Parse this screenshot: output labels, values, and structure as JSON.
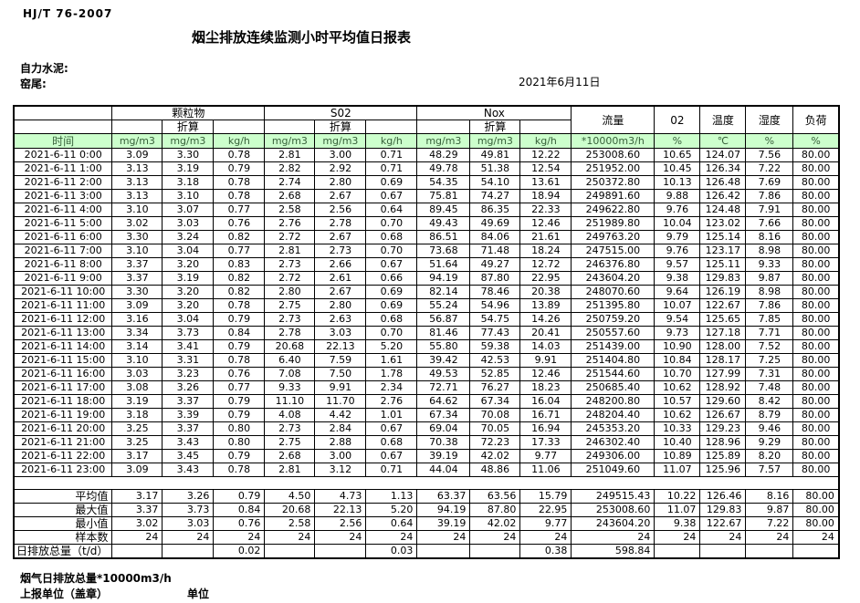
{
  "meta": {
    "standard": "HJ/T  76-2007",
    "title": "烟尘排放连续监测小时平均值日报表",
    "company": "自力水泥:",
    "location": "窑尾:",
    "date": "2021年6月11日"
  },
  "table": {
    "time_header": "时间",
    "groups": [
      {
        "label": "颗粒物"
      },
      {
        "label": "S02"
      },
      {
        "label": "Nox"
      }
    ],
    "converted_label": "折算",
    "flow_header": "流量",
    "o2_header": "02",
    "temp_header": "温度",
    "humidity_header": "湿度",
    "load_header": "负荷",
    "units": [
      "mg/m3",
      "mg/m3",
      "kg/h",
      "mg/m3",
      "mg/m3",
      "kg/h",
      "mg/m3",
      "mg/m3",
      "kg/h",
      "*10000m3/h",
      "%",
      "℃",
      "%",
      "%"
    ],
    "rows": [
      {
        "time": "2021-6-11 0:00",
        "values": [
          "3.09",
          "3.30",
          "0.78",
          "2.81",
          "3.00",
          "0.71",
          "48.29",
          "49.81",
          "12.22",
          "253008.60",
          "10.65",
          "124.07",
          "7.56",
          "80.00"
        ]
      },
      {
        "time": "2021-6-11 1:00",
        "values": [
          "3.13",
          "3.19",
          "0.79",
          "2.82",
          "2.92",
          "0.71",
          "49.78",
          "51.38",
          "12.54",
          "251952.00",
          "10.45",
          "126.34",
          "7.22",
          "80.00"
        ]
      },
      {
        "time": "2021-6-11 2:00",
        "values": [
          "3.13",
          "3.18",
          "0.78",
          "2.74",
          "2.80",
          "0.69",
          "54.35",
          "54.10",
          "13.61",
          "250372.80",
          "10.13",
          "126.48",
          "7.69",
          "80.00"
        ]
      },
      {
        "time": "2021-6-11 3:00",
        "values": [
          "3.13",
          "3.10",
          "0.78",
          "2.68",
          "2.67",
          "0.67",
          "75.81",
          "74.27",
          "18.94",
          "249891.60",
          "9.88",
          "126.42",
          "7.86",
          "80.00"
        ]
      },
      {
        "time": "2021-6-11 4:00",
        "values": [
          "3.10",
          "3.07",
          "0.77",
          "2.58",
          "2.56",
          "0.64",
          "89.45",
          "86.35",
          "22.33",
          "249622.80",
          "9.76",
          "124.48",
          "7.91",
          "80.00"
        ]
      },
      {
        "time": "2021-6-11 5:00",
        "values": [
          "3.02",
          "3.03",
          "0.76",
          "2.76",
          "2.78",
          "0.70",
          "49.43",
          "49.69",
          "12.46",
          "251989.80",
          "10.04",
          "123.02",
          "7.66",
          "80.00"
        ]
      },
      {
        "time": "2021-6-11 6:00",
        "values": [
          "3.30",
          "3.24",
          "0.82",
          "2.72",
          "2.67",
          "0.68",
          "86.51",
          "84.06",
          "21.61",
          "249763.20",
          "9.79",
          "125.14",
          "8.16",
          "80.00"
        ]
      },
      {
        "time": "2021-6-11 7:00",
        "values": [
          "3.10",
          "3.04",
          "0.77",
          "2.81",
          "2.73",
          "0.70",
          "73.68",
          "71.48",
          "18.24",
          "247515.00",
          "9.76",
          "123.17",
          "8.98",
          "80.00"
        ]
      },
      {
        "time": "2021-6-11 8:00",
        "values": [
          "3.37",
          "3.20",
          "0.83",
          "2.73",
          "2.66",
          "0.67",
          "51.64",
          "49.27",
          "12.72",
          "246376.80",
          "9.57",
          "125.11",
          "9.33",
          "80.00"
        ]
      },
      {
        "time": "2021-6-11 9:00",
        "values": [
          "3.37",
          "3.19",
          "0.82",
          "2.72",
          "2.61",
          "0.66",
          "94.19",
          "87.80",
          "22.95",
          "243604.20",
          "9.38",
          "129.83",
          "9.87",
          "80.00"
        ]
      },
      {
        "time": "2021-6-11 10:00",
        "values": [
          "3.30",
          "3.20",
          "0.82",
          "2.80",
          "2.67",
          "0.69",
          "82.14",
          "78.46",
          "20.38",
          "248070.60",
          "9.64",
          "126.19",
          "8.98",
          "80.00"
        ]
      },
      {
        "time": "2021-6-11 11:00",
        "values": [
          "3.09",
          "3.20",
          "0.78",
          "2.75",
          "2.80",
          "0.69",
          "55.24",
          "54.96",
          "13.89",
          "251395.80",
          "10.07",
          "122.67",
          "7.86",
          "80.00"
        ]
      },
      {
        "time": "2021-6-11 12:00",
        "values": [
          "3.16",
          "3.04",
          "0.79",
          "2.73",
          "2.63",
          "0.68",
          "56.87",
          "54.75",
          "14.26",
          "250759.20",
          "9.54",
          "125.65",
          "7.85",
          "80.00"
        ]
      },
      {
        "time": "2021-6-11 13:00",
        "values": [
          "3.34",
          "3.73",
          "0.84",
          "2.78",
          "3.03",
          "0.70",
          "81.46",
          "77.43",
          "20.41",
          "250557.60",
          "9.73",
          "127.18",
          "7.71",
          "80.00"
        ]
      },
      {
        "time": "2021-6-11 14:00",
        "values": [
          "3.14",
          "3.41",
          "0.79",
          "20.68",
          "22.13",
          "5.20",
          "55.80",
          "59.38",
          "14.03",
          "251439.00",
          "10.90",
          "128.00",
          "7.52",
          "80.00"
        ]
      },
      {
        "time": "2021-6-11 15:00",
        "values": [
          "3.10",
          "3.31",
          "0.78",
          "6.40",
          "7.59",
          "1.61",
          "39.42",
          "42.53",
          "9.91",
          "251404.80",
          "10.84",
          "128.17",
          "7.25",
          "80.00"
        ]
      },
      {
        "time": "2021-6-11 16:00",
        "values": [
          "3.03",
          "3.23",
          "0.76",
          "7.08",
          "7.50",
          "1.78",
          "49.53",
          "52.85",
          "12.46",
          "251544.60",
          "10.70",
          "127.99",
          "7.31",
          "80.00"
        ]
      },
      {
        "time": "2021-6-11 17:00",
        "values": [
          "3.08",
          "3.26",
          "0.77",
          "9.33",
          "9.91",
          "2.34",
          "72.71",
          "76.27",
          "18.23",
          "250685.40",
          "10.62",
          "128.92",
          "7.48",
          "80.00"
        ]
      },
      {
        "time": "2021-6-11 18:00",
        "values": [
          "3.19",
          "3.37",
          "0.79",
          "11.10",
          "11.70",
          "2.76",
          "64.62",
          "67.34",
          "16.04",
          "248200.80",
          "10.57",
          "129.60",
          "8.42",
          "80.00"
        ]
      },
      {
        "time": "2021-6-11 19:00",
        "values": [
          "3.18",
          "3.39",
          "0.79",
          "4.08",
          "4.42",
          "1.01",
          "67.34",
          "70.08",
          "16.71",
          "248204.40",
          "10.62",
          "126.67",
          "8.79",
          "80.00"
        ]
      },
      {
        "time": "2021-6-11 20:00",
        "values": [
          "3.25",
          "3.37",
          "0.80",
          "2.73",
          "2.84",
          "0.67",
          "69.04",
          "70.05",
          "16.94",
          "245353.20",
          "10.33",
          "129.23",
          "9.46",
          "80.00"
        ]
      },
      {
        "time": "2021-6-11 21:00",
        "values": [
          "3.25",
          "3.43",
          "0.80",
          "2.75",
          "2.88",
          "0.68",
          "70.38",
          "72.23",
          "17.33",
          "246302.40",
          "10.40",
          "128.96",
          "9.29",
          "80.00"
        ]
      },
      {
        "time": "2021-6-11 22:00",
        "values": [
          "3.17",
          "3.45",
          "0.79",
          "2.68",
          "3.00",
          "0.67",
          "39.19",
          "42.02",
          "9.77",
          "249306.00",
          "10.89",
          "125.89",
          "8.20",
          "80.00"
        ]
      },
      {
        "time": "2021-6-11 23:00",
        "values": [
          "3.09",
          "3.43",
          "0.78",
          "2.81",
          "3.12",
          "0.71",
          "44.04",
          "48.86",
          "11.06",
          "251049.60",
          "11.07",
          "125.96",
          "7.57",
          "80.00"
        ]
      }
    ],
    "summary": [
      {
        "label": "平均值",
        "values": [
          "3.17",
          "3.26",
          "0.79",
          "4.50",
          "4.73",
          "1.13",
          "63.37",
          "63.56",
          "15.79",
          "249515.43",
          "10.22",
          "126.46",
          "8.16",
          "80.00"
        ]
      },
      {
        "label": "最大值",
        "values": [
          "3.37",
          "3.73",
          "0.84",
          "20.68",
          "22.13",
          "5.20",
          "94.19",
          "87.80",
          "22.95",
          "253008.60",
          "11.07",
          "129.83",
          "9.87",
          "80.00"
        ]
      },
      {
        "label": "最小值",
        "values": [
          "3.02",
          "3.03",
          "0.76",
          "2.58",
          "2.56",
          "0.64",
          "39.19",
          "42.02",
          "9.77",
          "243604.20",
          "9.38",
          "122.67",
          "7.22",
          "80.00"
        ]
      },
      {
        "label": "样本数",
        "values": [
          "24",
          "24",
          "24",
          "24",
          "24",
          "24",
          "24",
          "24",
          "24",
          "24",
          "24",
          "24",
          "24",
          "24"
        ]
      },
      {
        "label": "日排放总量（t/d）",
        "values": [
          "",
          "",
          "0.02",
          "",
          "",
          "0.03",
          "",
          "",
          "0.38",
          "598.84",
          "",
          "",
          "",
          ""
        ]
      }
    ]
  },
  "footer": {
    "line1": "烟气日排放总量*10000m3/h",
    "line2": "上报单位（盖章）",
    "unit_label": "单位"
  },
  "colors": {
    "unit_row_bg": "#ccffcc",
    "unit_row_text": "#37603a",
    "border": "#000000"
  }
}
